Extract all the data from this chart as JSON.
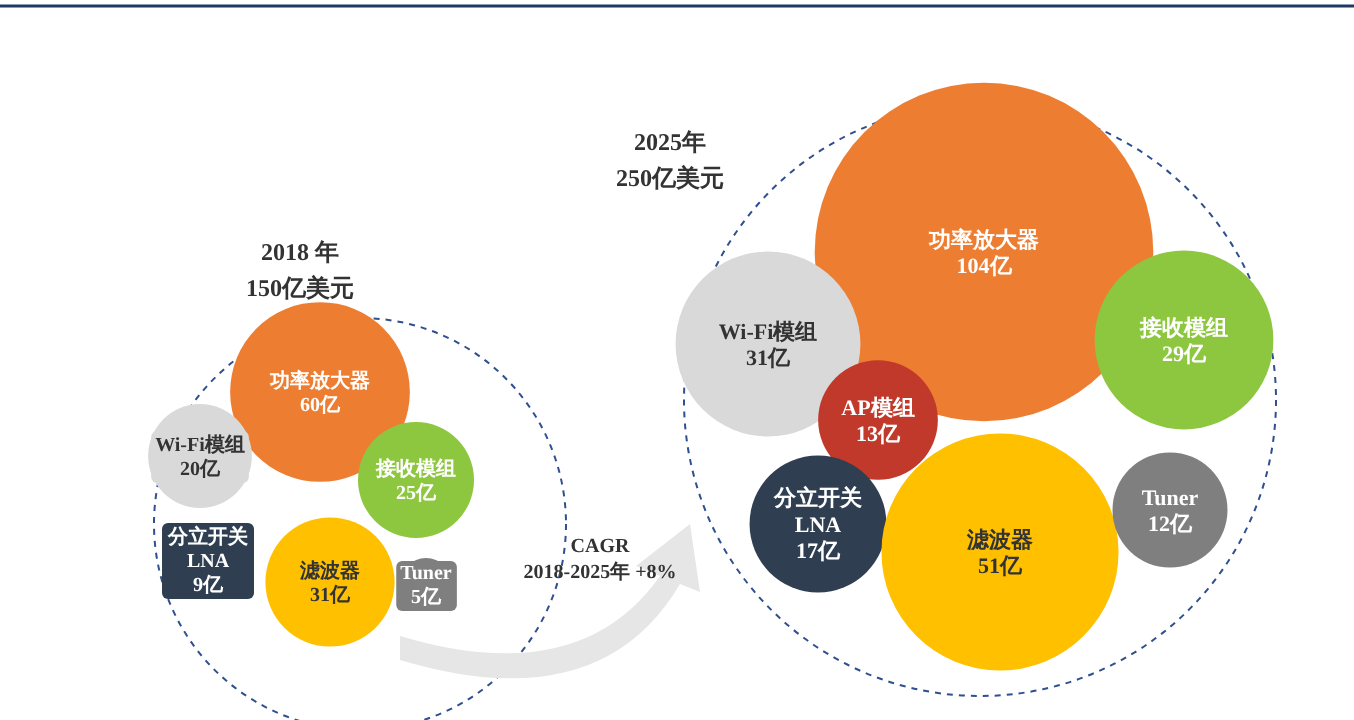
{
  "chart_data": [
    {
      "type": "other",
      "title": "2018 年",
      "subtitle": "150亿美元",
      "categories": [
        "功率放大器",
        "Wi-Fi模组",
        "接收模组",
        "分立开关\nLNA",
        "滤波器",
        "Tuner"
      ],
      "values": [
        60,
        20,
        25,
        9,
        31,
        5
      ],
      "value_labels": [
        "60亿",
        "20亿",
        "25亿",
        "9亿",
        "31亿",
        "5亿"
      ],
      "colors": [
        "#ed7d31",
        "#d9d9d9",
        "#8dc63f",
        "#2f3e50",
        "#ffc000",
        "#7f7f7f"
      ],
      "annotations": [
        "CAGR\n2018-2025年 +8%"
      ]
    },
    {
      "type": "other",
      "title": "2025年",
      "subtitle": "250亿美元",
      "categories": [
        "功率放大器",
        "Wi-Fi模组",
        "AP模组",
        "接收模组",
        "分立开关\nLNA",
        "滤波器",
        "Tuner"
      ],
      "values": [
        104,
        31,
        13,
        29,
        17,
        51,
        12
      ],
      "value_labels": [
        "104亿",
        "31亿",
        "13亿",
        "29亿",
        "17亿",
        "51亿",
        "12亿"
      ],
      "colors": [
        "#ed7d31",
        "#d9d9d9",
        "#c0392b",
        "#8dc63f",
        "#2f3e50",
        "#ffc000",
        "#7f7f7f"
      ]
    }
  ]
}
